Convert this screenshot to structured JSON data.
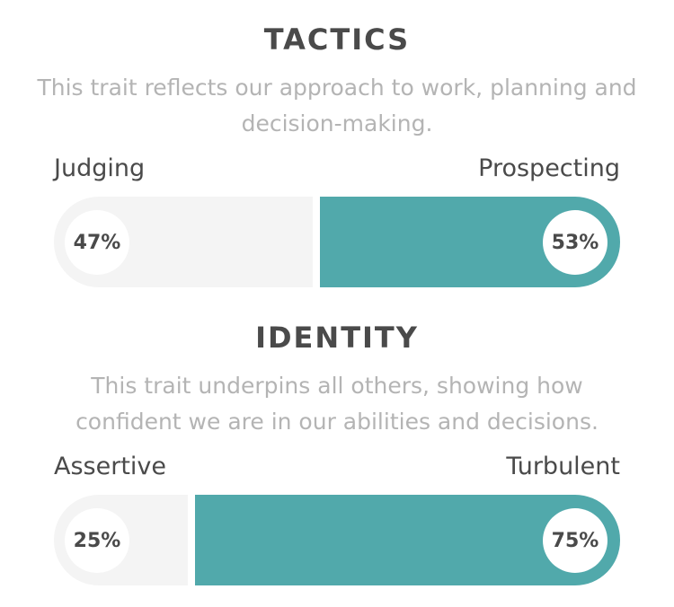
{
  "colors": {
    "accent": "#51a9ab",
    "track": "#f4f4f4",
    "heading": "#4a4a4a",
    "description": "#b4b4b4"
  },
  "traits": [
    {
      "title": "TACTICS",
      "description": "This trait reflects our approach to work, planning and decision-making.",
      "left_label": "Judging",
      "right_label": "Prospecting",
      "left_percent_text": "47%",
      "right_percent_text": "53%",
      "left_value": 47,
      "right_value": 53
    },
    {
      "title": "IDENTITY",
      "description": "This trait underpins all others, showing how confident we are in our abilities and decisions.",
      "left_label": "Assertive",
      "right_label": "Turbulent",
      "left_percent_text": "25%",
      "right_percent_text": "75%",
      "left_value": 25,
      "right_value": 75
    }
  ]
}
